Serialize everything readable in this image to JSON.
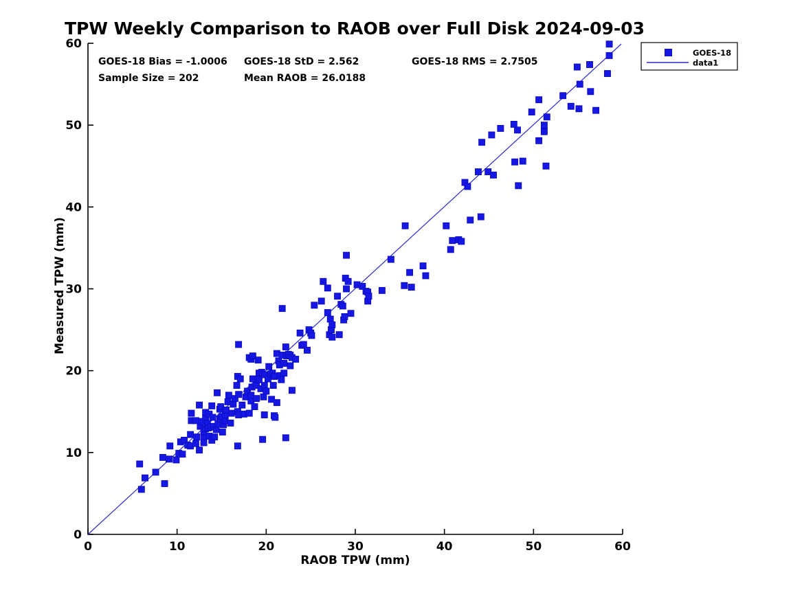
{
  "chart_data": {
    "type": "scatter",
    "title": "TPW Weekly Comparison to RAOB over Full Disk 2024-09-03",
    "xlabel": "RAOB TPW (mm)",
    "ylabel": "Measured TPW (mm)",
    "xlim": [
      0,
      60
    ],
    "ylim": [
      0,
      60
    ],
    "xticks": [
      0,
      10,
      20,
      30,
      40,
      50,
      60
    ],
    "yticks": [
      0,
      10,
      20,
      30,
      40,
      50,
      60
    ],
    "grid": false,
    "stats": {
      "bias": "GOES-18 Bias = -1.0006",
      "std": "GOES-18 StD = 2.562",
      "rms": "GOES-18 RMS = 2.7505",
      "sample_size": "Sample Size = 202",
      "mean_raob": "Mean RAOB = 26.0188"
    },
    "legend": {
      "position": "top-right-outside",
      "entries": [
        {
          "label": "GOES-18",
          "type": "marker"
        },
        {
          "label": "data1",
          "type": "line"
        }
      ]
    },
    "colors": {
      "marker_fill": "#1717e3",
      "marker_edge": "#0c0cbf",
      "line": "#2828cc",
      "axis": "#000000",
      "text": "#000000",
      "background": "#ffffff"
    },
    "reference_line": {
      "from": [
        0,
        0
      ],
      "to": [
        60,
        60
      ],
      "name": "data1"
    },
    "series": [
      {
        "name": "GOES-18",
        "marker": "square",
        "points": [
          [
            5.8,
            8.6
          ],
          [
            6.0,
            5.5
          ],
          [
            6.4,
            6.9
          ],
          [
            7.6,
            7.6
          ],
          [
            8.4,
            9.4
          ],
          [
            8.6,
            6.2
          ],
          [
            9.1,
            9.2
          ],
          [
            9.2,
            10.8
          ],
          [
            9.9,
            9.1
          ],
          [
            10.2,
            9.9
          ],
          [
            10.4,
            11.3
          ],
          [
            10.6,
            9.8
          ],
          [
            10.8,
            11.5
          ],
          [
            11.2,
            10.9
          ],
          [
            11.5,
            10.8
          ],
          [
            11.5,
            12.2
          ],
          [
            11.6,
            13.9
          ],
          [
            11.6,
            14.8
          ],
          [
            12.1,
            11.1
          ],
          [
            12.1,
            13.9
          ],
          [
            12.2,
            11.9
          ],
          [
            12.5,
            10.3
          ],
          [
            12.5,
            15.8
          ],
          [
            12.6,
            13.2
          ],
          [
            12.8,
            13.8
          ],
          [
            13.0,
            11.2
          ],
          [
            13.0,
            11.9
          ],
          [
            13.0,
            12.6
          ],
          [
            13.2,
            12.9
          ],
          [
            13.2,
            14.3
          ],
          [
            13.2,
            14.9
          ],
          [
            13.4,
            13.5
          ],
          [
            13.5,
            13.0
          ],
          [
            13.6,
            12.0
          ],
          [
            13.6,
            14.7
          ],
          [
            13.8,
            13.1
          ],
          [
            13.9,
            11.5
          ],
          [
            13.9,
            15.7
          ],
          [
            14.0,
            14.3
          ],
          [
            14.1,
            13.2
          ],
          [
            14.2,
            11.9
          ],
          [
            14.4,
            12.8
          ],
          [
            14.5,
            17.3
          ],
          [
            14.6,
            13.5
          ],
          [
            14.8,
            14.1
          ],
          [
            14.8,
            15.3
          ],
          [
            14.9,
            15.6
          ],
          [
            15.0,
            14.4
          ],
          [
            15.1,
            12.5
          ],
          [
            15.2,
            13.4
          ],
          [
            15.4,
            13.9
          ],
          [
            15.4,
            14.6
          ],
          [
            15.5,
            15.2
          ],
          [
            15.7,
            16.2
          ],
          [
            15.8,
            17.0
          ],
          [
            16.0,
            13.6
          ],
          [
            16.1,
            14.8
          ],
          [
            16.3,
            15.9
          ],
          [
            16.5,
            16.6
          ],
          [
            16.7,
            18.2
          ],
          [
            16.8,
            10.8
          ],
          [
            16.8,
            15.0
          ],
          [
            16.8,
            19.3
          ],
          [
            16.9,
            14.6
          ],
          [
            16.9,
            17.1
          ],
          [
            16.9,
            23.2
          ],
          [
            17.1,
            19.0
          ],
          [
            17.3,
            15.8
          ],
          [
            17.5,
            14.7
          ],
          [
            17.7,
            16.8
          ],
          [
            17.9,
            17.5
          ],
          [
            18.1,
            14.8
          ],
          [
            18.1,
            21.6
          ],
          [
            18.3,
            16.3
          ],
          [
            18.3,
            17.0
          ],
          [
            18.3,
            21.4
          ],
          [
            18.4,
            18.0
          ],
          [
            18.5,
            19.0
          ],
          [
            18.5,
            21.8
          ],
          [
            18.7,
            15.6
          ],
          [
            18.9,
            16.6
          ],
          [
            18.9,
            18.2
          ],
          [
            19.1,
            21.3
          ],
          [
            19.2,
            18.9
          ],
          [
            19.2,
            19.7
          ],
          [
            19.4,
            17.8
          ],
          [
            19.5,
            19.8
          ],
          [
            19.6,
            11.6
          ],
          [
            19.7,
            16.8
          ],
          [
            19.8,
            14.6
          ],
          [
            19.8,
            18.2
          ],
          [
            19.8,
            19.5
          ],
          [
            20.0,
            17.5
          ],
          [
            20.2,
            19.0
          ],
          [
            20.3,
            20.5
          ],
          [
            20.5,
            19.6
          ],
          [
            20.6,
            16.5
          ],
          [
            20.7,
            19.7
          ],
          [
            20.8,
            18.2
          ],
          [
            20.9,
            14.5
          ],
          [
            20.9,
            19.3
          ],
          [
            21.0,
            14.3
          ],
          [
            21.2,
            16.1
          ],
          [
            21.2,
            22.1
          ],
          [
            21.4,
            21.2
          ],
          [
            21.5,
            19.4
          ],
          [
            21.5,
            20.7
          ],
          [
            21.7,
            18.9
          ],
          [
            21.8,
            21.9
          ],
          [
            21.8,
            27.6
          ],
          [
            22.0,
            19.7
          ],
          [
            22.0,
            20.9
          ],
          [
            22.2,
            11.8
          ],
          [
            22.2,
            22.9
          ],
          [
            22.3,
            21.8
          ],
          [
            22.5,
            22.0
          ],
          [
            22.7,
            20.6
          ],
          [
            22.7,
            21.9
          ],
          [
            22.9,
            17.6
          ],
          [
            22.9,
            21.6
          ],
          [
            23.3,
            21.4
          ],
          [
            23.8,
            24.6
          ],
          [
            24.0,
            23.1
          ],
          [
            24.2,
            23.2
          ],
          [
            24.6,
            22.5
          ],
          [
            24.8,
            25.0
          ],
          [
            25.0,
            24.6
          ],
          [
            25.1,
            24.3
          ],
          [
            25.4,
            28.0
          ],
          [
            26.2,
            28.5
          ],
          [
            26.4,
            30.9
          ],
          [
            26.9,
            27.1
          ],
          [
            26.9,
            30.1
          ],
          [
            27.1,
            24.4
          ],
          [
            27.2,
            26.3
          ],
          [
            27.3,
            25.0
          ],
          [
            27.4,
            24.1
          ],
          [
            27.4,
            25.6
          ],
          [
            28.0,
            29.1
          ],
          [
            28.2,
            24.4
          ],
          [
            28.4,
            28.1
          ],
          [
            28.6,
            27.9
          ],
          [
            28.7,
            26.2
          ],
          [
            28.8,
            26.6
          ],
          [
            28.9,
            31.3
          ],
          [
            29.0,
            30.0
          ],
          [
            29.0,
            34.1
          ],
          [
            29.2,
            30.9
          ],
          [
            29.5,
            27.0
          ],
          [
            30.2,
            30.5
          ],
          [
            30.8,
            30.3
          ],
          [
            31.2,
            29.7
          ],
          [
            31.4,
            28.5
          ],
          [
            31.4,
            29.6
          ],
          [
            31.5,
            29.1
          ],
          [
            33.0,
            29.8
          ],
          [
            34.0,
            33.6
          ],
          [
            35.5,
            30.4
          ],
          [
            35.6,
            37.7
          ],
          [
            36.1,
            32.0
          ],
          [
            36.3,
            30.2
          ],
          [
            37.6,
            32.8
          ],
          [
            37.9,
            31.6
          ],
          [
            40.2,
            37.7
          ],
          [
            40.7,
            34.8
          ],
          [
            40.9,
            35.9
          ],
          [
            41.6,
            36.0
          ],
          [
            41.9,
            35.8
          ],
          [
            42.3,
            43.0
          ],
          [
            42.6,
            42.5
          ],
          [
            42.9,
            38.4
          ],
          [
            43.8,
            44.3
          ],
          [
            44.1,
            38.8
          ],
          [
            44.2,
            47.9
          ],
          [
            44.9,
            44.3
          ],
          [
            45.3,
            48.8
          ],
          [
            45.5,
            43.9
          ],
          [
            46.3,
            49.6
          ],
          [
            47.8,
            50.1
          ],
          [
            47.9,
            45.5
          ],
          [
            48.2,
            49.4
          ],
          [
            48.3,
            42.6
          ],
          [
            48.8,
            45.6
          ],
          [
            49.8,
            51.6
          ],
          [
            50.6,
            48.1
          ],
          [
            50.6,
            53.1
          ],
          [
            51.2,
            49.2
          ],
          [
            51.2,
            50.0
          ],
          [
            51.4,
            45.0
          ],
          [
            51.5,
            51.0
          ],
          [
            53.3,
            53.6
          ],
          [
            54.2,
            52.3
          ],
          [
            54.9,
            57.1
          ],
          [
            55.1,
            52.0
          ],
          [
            55.2,
            55.0
          ],
          [
            56.3,
            57.4
          ],
          [
            56.4,
            54.1
          ],
          [
            57.0,
            51.8
          ],
          [
            58.3,
            56.3
          ],
          [
            58.5,
            58.5
          ],
          [
            58.5,
            59.9
          ]
        ]
      }
    ]
  }
}
